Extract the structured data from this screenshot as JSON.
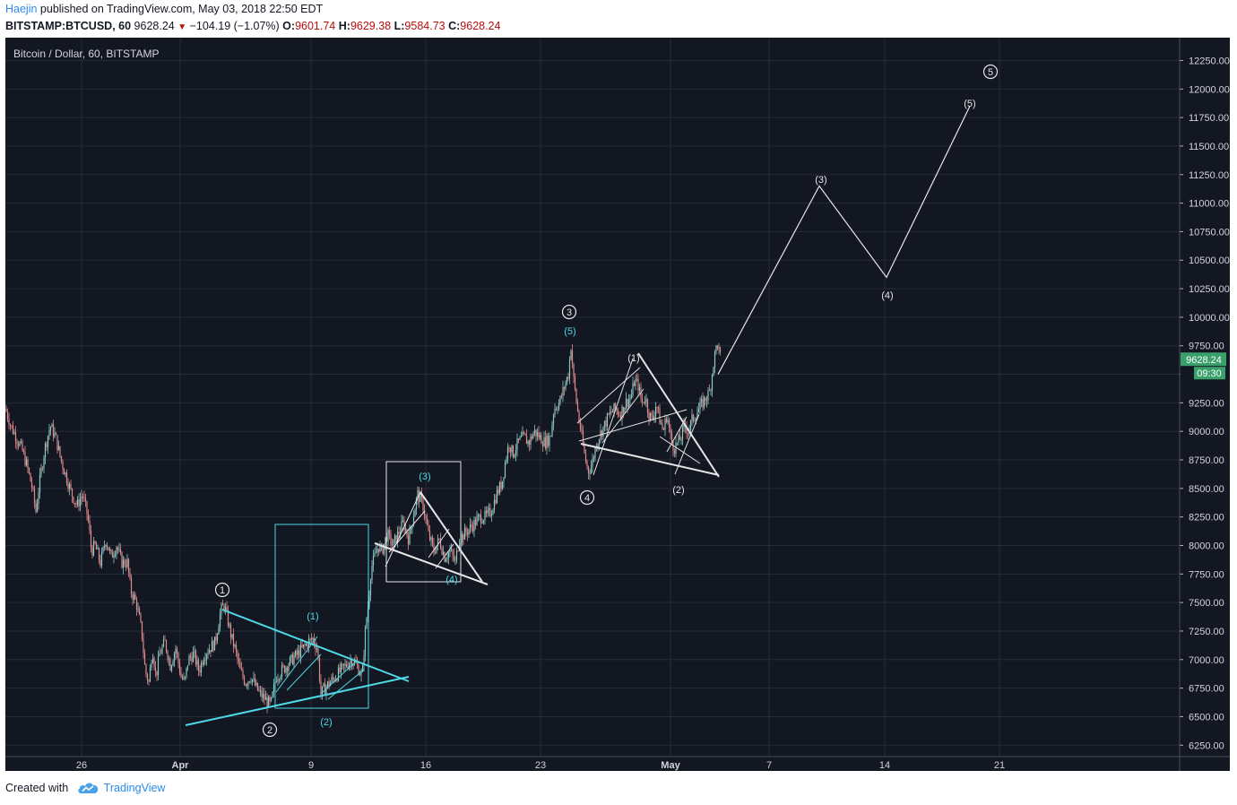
{
  "header": {
    "author": "Haejin",
    "published_text": " published on TradingView.com, May 03, 2018 22:50 EDT",
    "symbol_line": "BITSTAMP:BTCUSD, 60",
    "last_price": "9628.24",
    "change": "−104.19 (−1.07%)",
    "o_label": "O:",
    "o_value": "9601.74",
    "h_label": "H:",
    "h_value": "9629.38",
    "l_label": "L:",
    "l_value": "9584.73",
    "c_label": "C:",
    "c_value": "9628.24"
  },
  "footer": {
    "created_with": "Created with",
    "brand": "TradingView"
  },
  "chart_data": {
    "type": "line",
    "title": "Bitcoin / Dollar, 60, BITSTAMP",
    "ylim": [
      6150,
      12450
    ],
    "y_ticks": [
      "12250.00",
      "12000.00",
      "11750.00",
      "11500.00",
      "11250.00",
      "11000.00",
      "10750.00",
      "10500.00",
      "10250.00",
      "10000.00",
      "9750.00",
      "9500.00",
      "9250.00",
      "9000.00",
      "8750.00",
      "8500.00",
      "8250.00",
      "8000.00",
      "7750.00",
      "7500.00",
      "7250.00",
      "7000.00",
      "6750.00",
      "6500.00",
      "6250.00"
    ],
    "x_ticks": [
      "26",
      "Apr",
      "9",
      "16",
      "23",
      "May",
      "7",
      "14",
      "21"
    ],
    "price_label": "9628.24",
    "countdown": "09:30",
    "grid": true,
    "colors": {
      "background": "#131722",
      "grid": "#262b38",
      "up": "#8cc8c0",
      "down": "#e08a8a",
      "cyan": "#4dd9e6",
      "white": "#e6e6e6",
      "price_tag": "#3aa06b"
    },
    "series": [
      {
        "values": [
          [
            0,
            9200
          ],
          [
            6,
            9050
          ],
          [
            12,
            8950
          ],
          [
            18,
            8850
          ],
          [
            24,
            8700
          ],
          [
            30,
            8500
          ],
          [
            34,
            8300
          ],
          [
            38,
            8550
          ],
          [
            44,
            8850
          ],
          [
            50,
            9050
          ],
          [
            56,
            8950
          ],
          [
            62,
            8750
          ],
          [
            68,
            8600
          ],
          [
            74,
            8450
          ],
          [
            80,
            8350
          ],
          [
            86,
            8450
          ],
          [
            92,
            8250
          ],
          [
            96,
            7950
          ],
          [
            100,
            8000
          ],
          [
            106,
            7850
          ],
          [
            112,
            8050
          ],
          [
            118,
            7900
          ],
          [
            124,
            8000
          ],
          [
            130,
            7850
          ],
          [
            136,
            7850
          ],
          [
            140,
            7600
          ],
          [
            146,
            7500
          ],
          [
            152,
            7250
          ],
          [
            156,
            6900
          ],
          [
            160,
            6800
          ],
          [
            164,
            7100
          ],
          [
            168,
            6850
          ],
          [
            172,
            7050
          ],
          [
            178,
            7150
          ],
          [
            184,
            6950
          ],
          [
            190,
            7100
          ],
          [
            196,
            6850
          ],
          [
            200,
            6800
          ],
          [
            204,
            7000
          ],
          [
            210,
            7050
          ],
          [
            216,
            6900
          ],
          [
            222,
            7050
          ],
          [
            228,
            7100
          ],
          [
            234,
            7150
          ],
          [
            240,
            7420
          ],
          [
            244,
            7480
          ],
          [
            248,
            7350
          ],
          [
            252,
            7200
          ],
          [
            256,
            7100
          ],
          [
            262,
            6900
          ],
          [
            268,
            6800
          ],
          [
            274,
            6850
          ],
          [
            280,
            6750
          ],
          [
            284,
            6700
          ],
          [
            290,
            6650
          ],
          [
            296,
            6600
          ],
          [
            302,
            6850
          ],
          [
            308,
            6900
          ],
          [
            314,
            6950
          ],
          [
            320,
            7000
          ],
          [
            326,
            7050
          ],
          [
            332,
            7100
          ],
          [
            338,
            7150
          ],
          [
            343,
            7180
          ],
          [
            348,
            7100
          ],
          [
            352,
            6700
          ],
          [
            356,
            6750
          ],
          [
            362,
            6800
          ],
          [
            368,
            6850
          ],
          [
            374,
            6900
          ],
          [
            380,
            6950
          ],
          [
            386,
            7000
          ],
          [
            392,
            6950
          ],
          [
            398,
            6850
          ],
          [
            402,
            7300
          ],
          [
            405,
            7500
          ],
          [
            408,
            7800
          ],
          [
            412,
            7900
          ],
          [
            416,
            8000
          ],
          [
            420,
            7950
          ],
          [
            426,
            8100
          ],
          [
            432,
            8000
          ],
          [
            438,
            8100
          ],
          [
            444,
            8200
          ],
          [
            450,
            8050
          ],
          [
            456,
            8300
          ],
          [
            460,
            8450
          ],
          [
            466,
            8350
          ],
          [
            472,
            8100
          ],
          [
            478,
            7950
          ],
          [
            484,
            8050
          ],
          [
            490,
            7900
          ],
          [
            496,
            7950
          ],
          [
            502,
            7850
          ],
          [
            506,
            8050
          ],
          [
            512,
            8100
          ],
          [
            518,
            8150
          ],
          [
            524,
            8200
          ],
          [
            530,
            8250
          ],
          [
            536,
            8250
          ],
          [
            542,
            8300
          ],
          [
            548,
            8450
          ],
          [
            554,
            8550
          ],
          [
            558,
            8750
          ],
          [
            562,
            8900
          ],
          [
            566,
            8800
          ],
          [
            572,
            8900
          ],
          [
            578,
            8950
          ],
          [
            584,
            8900
          ],
          [
            590,
            9000
          ],
          [
            596,
            8950
          ],
          [
            602,
            8900
          ],
          [
            608,
            8950
          ],
          [
            612,
            9200
          ],
          [
            618,
            9250
          ],
          [
            624,
            9400
          ],
          [
            628,
            9500
          ],
          [
            631,
            9750
          ],
          [
            634,
            9450
          ],
          [
            638,
            9200
          ],
          [
            642,
            9000
          ],
          [
            646,
            8800
          ],
          [
            650,
            8650
          ],
          [
            654,
            8700
          ],
          [
            658,
            8850
          ],
          [
            662,
            8950
          ],
          [
            668,
            9050
          ],
          [
            674,
            9150
          ],
          [
            680,
            9200
          ],
          [
            686,
            9150
          ],
          [
            692,
            9250
          ],
          [
            698,
            9300
          ],
          [
            702,
            9450
          ],
          [
            706,
            9400
          ],
          [
            710,
            9250
          ],
          [
            714,
            9300
          ],
          [
            718,
            9150
          ],
          [
            722,
            9100
          ],
          [
            726,
            9250
          ],
          [
            730,
            9100
          ],
          [
            734,
            9000
          ],
          [
            738,
            9150
          ],
          [
            742,
            8950
          ],
          [
            746,
            8850
          ],
          [
            750,
            8900
          ],
          [
            754,
            8950
          ],
          [
            758,
            9050
          ],
          [
            762,
            9000
          ],
          [
            766,
            9100
          ],
          [
            770,
            9150
          ],
          [
            774,
            9200
          ],
          [
            778,
            9250
          ],
          [
            782,
            9300
          ],
          [
            786,
            9350
          ],
          [
            790,
            9600
          ],
          [
            794,
            9780
          ],
          [
            798,
            9628
          ]
        ]
      },
      {
        "name": "projection",
        "values": [
          [
            795,
            9500
          ],
          [
            908,
            11150
          ],
          [
            983,
            10350
          ],
          [
            1076,
            11850
          ]
        ]
      }
    ],
    "wave_labels": [
      "1",
      "2",
      "(1)",
      "(2)",
      "(3)",
      "(4)",
      "3",
      "(5)",
      "4",
      "(1)",
      "(2)",
      "(3)",
      "(4)",
      "(5)",
      "5"
    ]
  }
}
